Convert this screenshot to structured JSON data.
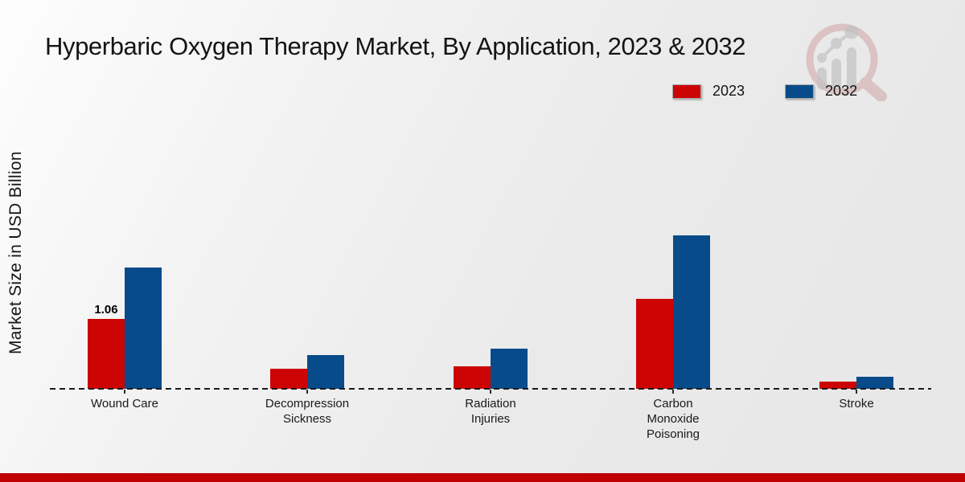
{
  "page": {
    "title": "Hyperbaric Oxygen Therapy Market, By Application, 2023 & 2032",
    "footer_color": "#bf0101",
    "background_color": "#ebebeb"
  },
  "chart_data": {
    "type": "bar",
    "title": "Hyperbaric Oxygen Therapy Market, By Application, 2023 & 2032",
    "xlabel": "",
    "ylabel": "Market Size in USD Billion",
    "ylim": [
      0,
      2.5
    ],
    "grid": false,
    "legend_position": "top-right",
    "baseline_style": "dashed",
    "y_axis_ticks_visible": false,
    "categories": [
      "Wound Care",
      "Decompression\nSickness",
      "Radiation\nInjuries",
      "Carbon\nMonoxide\nPoisoning",
      "Stroke"
    ],
    "series": [
      {
        "name": "2023",
        "color": "#cc0404",
        "values": [
          1.06,
          0.3,
          0.34,
          1.36,
          0.11
        ],
        "data_labels": [
          "1.06",
          "",
          "",
          "",
          ""
        ]
      },
      {
        "name": "2032",
        "color": "#084b8a",
        "values": [
          1.84,
          0.51,
          0.61,
          2.33,
          0.18
        ],
        "data_labels": [
          "",
          "",
          "",
          "",
          ""
        ]
      }
    ]
  },
  "watermark": {
    "icon": "magnifier-bar-chart-logo",
    "glass_color": "#c98f8f",
    "bars_color": "#c2c2c2"
  }
}
